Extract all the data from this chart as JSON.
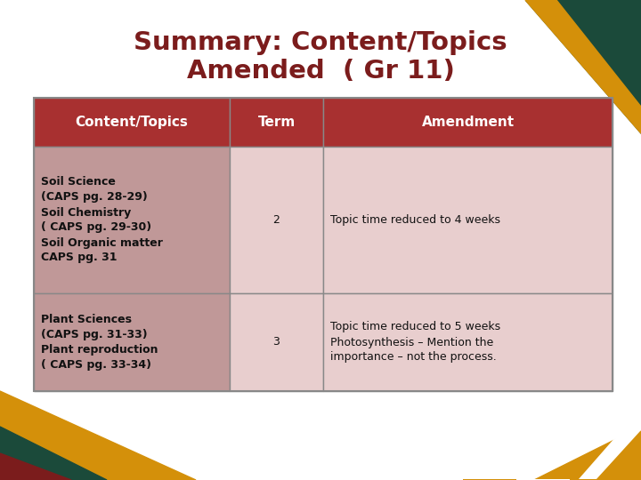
{
  "title_line1": "Summary: Content/Topics",
  "title_line2": "Amended  ( Gr 11)",
  "title_color": "#7B1C1C",
  "bg_color": "#FFFFFF",
  "header_bg": "#A83030",
  "header_text_color": "#FFFFFF",
  "row1_col1_bg": "#C8888888",
  "row_light_bg": "#EDD8D8",
  "row_dark_col1_bg": "#C09090",
  "col_headers": [
    "Content/Topics",
    "Term",
    "Amendment"
  ],
  "row1_col1": "Soil Science\n(CAPS pg. 28-29)\nSoil Chemistry\n( CAPS pg. 29-30)\nSoil Organic matter\nCAPS pg. 31",
  "row1_col2": "2",
  "row1_col3": "Topic time reduced to 4 weeks",
  "row2_col1": "Plant Sciences\n(CAPS pg. 31-33)\nPlant reproduction\n( CAPS pg. 33-34)",
  "row2_col2": "3",
  "row2_col3": "Topic time reduced to 5 weeks\nPhotosynthesis – Mention the\nimportance – not the process.",
  "table_border_color": "#888888",
  "gold_color": "#D4900A",
  "dark_green": "#1B4A3A",
  "dark_red": "#7B1C1C"
}
